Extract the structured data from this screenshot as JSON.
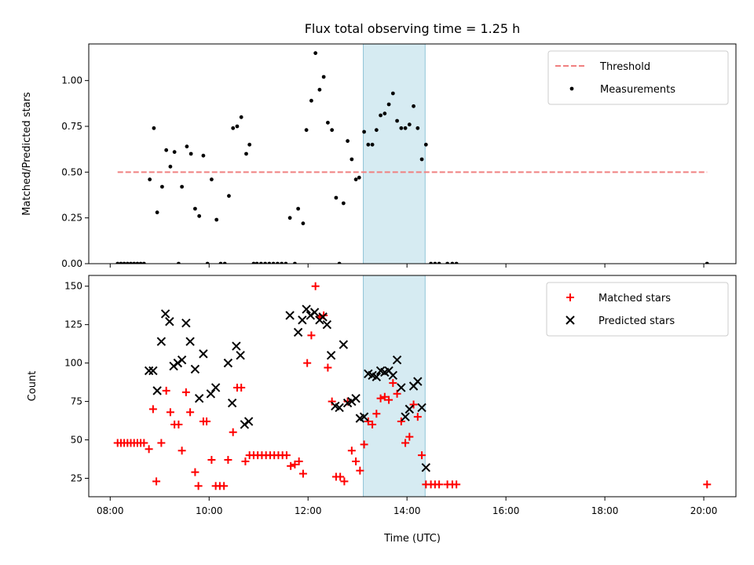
{
  "title": "Flux total observing time = 1.25 h",
  "xlabel": "Time (UTC)",
  "x_ticks": [
    "08:00",
    "10:00",
    "12:00",
    "14:00",
    "16:00",
    "18:00",
    "20:00"
  ],
  "colors": {
    "threshold": "#f08080",
    "measurement": "#000000",
    "matched": "#ff0000",
    "predicted": "#000000",
    "span_fill": "#add8e6"
  },
  "chart_data": [
    {
      "type": "scatter",
      "ylabel": "Matched/Predicted stars",
      "xlim": [
        "07:34",
        "20:39"
      ],
      "ylim": [
        0,
        1.2
      ],
      "y_ticks": [
        "0.00",
        "0.25",
        "0.50",
        "0.75",
        "1.00"
      ],
      "y_tick_values": [
        0,
        0.25,
        0.5,
        0.75,
        1.0
      ],
      "legend": {
        "placement": "upper right",
        "entries": [
          "Threshold",
          "Measurements"
        ]
      },
      "highlight_span": {
        "start": "13:07",
        "end": "14:22"
      },
      "threshold": {
        "name": "Threshold",
        "y": 0.5,
        "x_start": "08:09",
        "x_end": "20:04"
      },
      "series": [
        {
          "name": "Measurements",
          "marker": "dot",
          "points": [
            [
              "08:09",
              0
            ],
            [
              "08:13",
              0
            ],
            [
              "08:17",
              0
            ],
            [
              "08:21",
              0
            ],
            [
              "08:25",
              0
            ],
            [
              "08:29",
              0
            ],
            [
              "08:33",
              0
            ],
            [
              "08:37",
              0
            ],
            [
              "08:41",
              0
            ],
            [
              "08:48",
              0.46
            ],
            [
              "08:53",
              0.74
            ],
            [
              "08:57",
              0.28
            ],
            [
              "09:03",
              0.42
            ],
            [
              "09:08",
              0.62
            ],
            [
              "09:13",
              0.53
            ],
            [
              "09:18",
              0.61
            ],
            [
              "09:23",
              0
            ],
            [
              "09:27",
              0.42
            ],
            [
              "09:33",
              0.64
            ],
            [
              "09:38",
              0.6
            ],
            [
              "09:43",
              0.3
            ],
            [
              "09:48",
              0.26
            ],
            [
              "09:53",
              0.59
            ],
            [
              "09:58",
              0
            ],
            [
              "10:03",
              0.46
            ],
            [
              "10:09",
              0.24
            ],
            [
              "10:14",
              0
            ],
            [
              "10:19",
              0
            ],
            [
              "10:24",
              0.37
            ],
            [
              "10:29",
              0.74
            ],
            [
              "10:34",
              0.75
            ],
            [
              "10:39",
              0.8
            ],
            [
              "10:45",
              0.6
            ],
            [
              "10:49",
              0.65
            ],
            [
              "10:54",
              0
            ],
            [
              "10:58",
              0
            ],
            [
              "11:03",
              0
            ],
            [
              "11:08",
              0
            ],
            [
              "11:13",
              0
            ],
            [
              "11:18",
              0
            ],
            [
              "11:23",
              0
            ],
            [
              "11:28",
              0
            ],
            [
              "11:33",
              0
            ],
            [
              "11:38",
              0.25
            ],
            [
              "11:44",
              0
            ],
            [
              "11:48",
              0.3
            ],
            [
              "11:54",
              0.22
            ],
            [
              "11:58",
              0.73
            ],
            [
              "12:04",
              0.89
            ],
            [
              "12:09",
              1.15
            ],
            [
              "12:14",
              0.95
            ],
            [
              "12:19",
              1.02
            ],
            [
              "12:24",
              0.77
            ],
            [
              "12:29",
              0.73
            ],
            [
              "12:34",
              0.36
            ],
            [
              "12:38",
              0
            ],
            [
              "12:43",
              0.33
            ],
            [
              "12:48",
              0.67
            ],
            [
              "12:53",
              0.57
            ],
            [
              "12:58",
              0.46
            ],
            [
              "13:02",
              0.47
            ],
            [
              "13:08",
              0.72
            ],
            [
              "13:13",
              0.65
            ],
            [
              "13:18",
              0.65
            ],
            [
              "13:23",
              0.73
            ],
            [
              "13:28",
              0.81
            ],
            [
              "13:33",
              0.82
            ],
            [
              "13:38",
              0.87
            ],
            [
              "13:43",
              0.93
            ],
            [
              "13:48",
              0.78
            ],
            [
              "13:53",
              0.74
            ],
            [
              "13:58",
              0.74
            ],
            [
              "14:03",
              0.76
            ],
            [
              "14:08",
              0.86
            ],
            [
              "14:13",
              0.74
            ],
            [
              "14:18",
              0.57
            ],
            [
              "14:23",
              0.65
            ],
            [
              "14:29",
              0
            ],
            [
              "14:34",
              0
            ],
            [
              "14:39",
              0
            ],
            [
              "14:49",
              0
            ],
            [
              "14:55",
              0
            ],
            [
              "15:00",
              0
            ],
            [
              "20:04",
              0
            ]
          ]
        }
      ]
    },
    {
      "type": "scatter",
      "ylabel": "Count",
      "xlabel": "Time (UTC)",
      "xlim": [
        "07:34",
        "20:39"
      ],
      "ylim": [
        13,
        157
      ],
      "y_ticks": [
        "25",
        "50",
        "75",
        "100",
        "125",
        "150"
      ],
      "y_tick_values": [
        25,
        50,
        75,
        100,
        125,
        150
      ],
      "legend": {
        "placement": "upper right",
        "entries": [
          "Matched stars",
          "Predicted stars"
        ]
      },
      "highlight_span": {
        "start": "13:07",
        "end": "14:22"
      },
      "series": [
        {
          "name": "Matched stars",
          "marker": "plus",
          "points": [
            [
              "08:09",
              48
            ],
            [
              "08:13",
              48
            ],
            [
              "08:17",
              48
            ],
            [
              "08:21",
              48
            ],
            [
              "08:25",
              48
            ],
            [
              "08:29",
              48
            ],
            [
              "08:33",
              48
            ],
            [
              "08:37",
              48
            ],
            [
              "08:41",
              48
            ],
            [
              "08:47",
              44
            ],
            [
              "08:52",
              70
            ],
            [
              "08:56",
              23
            ],
            [
              "09:02",
              48
            ],
            [
              "09:08",
              82
            ],
            [
              "09:13",
              68
            ],
            [
              "09:18",
              60
            ],
            [
              "09:23",
              60
            ],
            [
              "09:27",
              43
            ],
            [
              "09:32",
              81
            ],
            [
              "09:37",
              68
            ],
            [
              "09:43",
              29
            ],
            [
              "09:47",
              20
            ],
            [
              "09:53",
              62
            ],
            [
              "09:57",
              62
            ],
            [
              "10:03",
              37
            ],
            [
              "10:08",
              20
            ],
            [
              "10:13",
              20
            ],
            [
              "10:18",
              20
            ],
            [
              "10:23",
              37
            ],
            [
              "10:29",
              55
            ],
            [
              "10:34",
              84
            ],
            [
              "10:39",
              84
            ],
            [
              "10:44",
              36
            ],
            [
              "10:49",
              40
            ],
            [
              "10:54",
              40
            ],
            [
              "10:59",
              40
            ],
            [
              "11:04",
              40
            ],
            [
              "11:09",
              40
            ],
            [
              "11:14",
              40
            ],
            [
              "11:19",
              40
            ],
            [
              "11:24",
              40
            ],
            [
              "11:29",
              40
            ],
            [
              "11:34",
              40
            ],
            [
              "11:39",
              33
            ],
            [
              "11:44",
              34
            ],
            [
              "11:49",
              36
            ],
            [
              "11:54",
              28
            ],
            [
              "11:59",
              100
            ],
            [
              "12:04",
              118
            ],
            [
              "12:09",
              150
            ],
            [
              "12:14",
              130
            ],
            [
              "12:19",
              131
            ],
            [
              "12:24",
              97
            ],
            [
              "12:29",
              75
            ],
            [
              "12:34",
              26
            ],
            [
              "12:39",
              26
            ],
            [
              "12:44",
              23
            ],
            [
              "12:48",
              75
            ],
            [
              "12:53",
              43
            ],
            [
              "12:58",
              36
            ],
            [
              "13:03",
              30
            ],
            [
              "13:08",
              47
            ],
            [
              "13:13",
              62
            ],
            [
              "13:18",
              60
            ],
            [
              "13:23",
              67
            ],
            [
              "13:28",
              77
            ],
            [
              "13:33",
              78
            ],
            [
              "13:38",
              76
            ],
            [
              "13:43",
              87
            ],
            [
              "13:48",
              80
            ],
            [
              "13:53",
              62
            ],
            [
              "13:58",
              48
            ],
            [
              "14:03",
              52
            ],
            [
              "14:08",
              73
            ],
            [
              "14:13",
              65
            ],
            [
              "14:18",
              40
            ],
            [
              "14:23",
              21
            ],
            [
              "14:29",
              21
            ],
            [
              "14:34",
              21
            ],
            [
              "14:39",
              21
            ],
            [
              "14:49",
              21
            ],
            [
              "14:55",
              21
            ],
            [
              "15:00",
              21
            ],
            [
              "20:04",
              21
            ]
          ]
        },
        {
          "name": "Predicted stars",
          "marker": "x",
          "points": [
            [
              "08:47",
              95
            ],
            [
              "08:52",
              95
            ],
            [
              "08:57",
              82
            ],
            [
              "09:02",
              114
            ],
            [
              "09:07",
              132
            ],
            [
              "09:12",
              127
            ],
            [
              "09:17",
              98
            ],
            [
              "09:22",
              100
            ],
            [
              "09:27",
              102
            ],
            [
              "09:32",
              126
            ],
            [
              "09:37",
              114
            ],
            [
              "09:43",
              96
            ],
            [
              "09:48",
              77
            ],
            [
              "09:53",
              106
            ],
            [
              "10:02",
              80
            ],
            [
              "10:08",
              84
            ],
            [
              "10:23",
              100
            ],
            [
              "10:28",
              74
            ],
            [
              "10:33",
              111
            ],
            [
              "10:38",
              105
            ],
            [
              "10:43",
              60
            ],
            [
              "10:48",
              62
            ],
            [
              "11:38",
              131
            ],
            [
              "11:48",
              120
            ],
            [
              "11:53",
              128
            ],
            [
              "11:58",
              135
            ],
            [
              "12:03",
              131
            ],
            [
              "12:08",
              133
            ],
            [
              "12:14",
              128
            ],
            [
              "12:18",
              130
            ],
            [
              "12:23",
              125
            ],
            [
              "12:28",
              105
            ],
            [
              "12:33",
              72
            ],
            [
              "12:38",
              71
            ],
            [
              "12:43",
              112
            ],
            [
              "12:48",
              74
            ],
            [
              "12:53",
              75
            ],
            [
              "12:58",
              77
            ],
            [
              "13:03",
              64
            ],
            [
              "13:08",
              65
            ],
            [
              "13:13",
              93
            ],
            [
              "13:18",
              92
            ],
            [
              "13:23",
              91
            ],
            [
              "13:28",
              95
            ],
            [
              "13:33",
              94
            ],
            [
              "13:38",
              95
            ],
            [
              "13:43",
              92
            ],
            [
              "13:48",
              102
            ],
            [
              "13:53",
              84
            ],
            [
              "13:58",
              65
            ],
            [
              "14:03",
              70
            ],
            [
              "14:08",
              85
            ],
            [
              "14:13",
              88
            ],
            [
              "14:18",
              71
            ],
            [
              "14:23",
              32
            ]
          ]
        }
      ]
    }
  ]
}
